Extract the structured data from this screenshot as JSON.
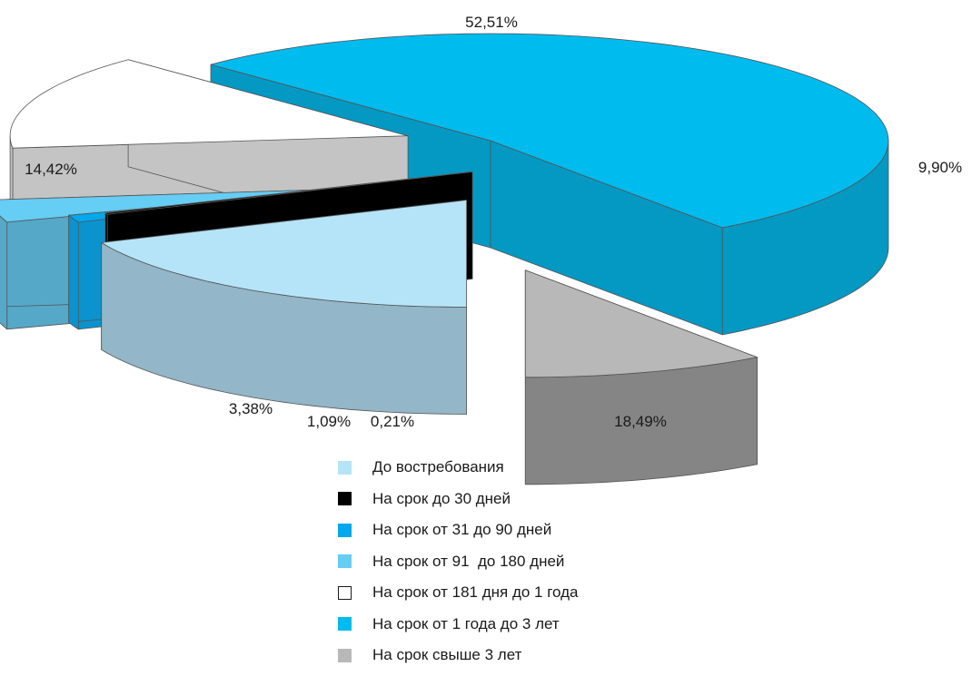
{
  "chart_data": {
    "type": "pie",
    "style": "3d-exploded",
    "categories": [
      "До востребования",
      "На срок до 30 дней",
      "На срок от 31 до 90 дней",
      "На срок от 91  до 180 дней",
      "На срок от 181 дня до 1 года",
      "На срок от 1 года до 3 лет",
      "На срок свыше 3 лет"
    ],
    "values": [
      18.49,
      0.21,
      1.09,
      3.38,
      14.42,
      52.51,
      9.9
    ],
    "value_labels": [
      "18,49%",
      "0,21%",
      "1,09%",
      "3,38%",
      "14,42%",
      "52,51%",
      "9,90%"
    ],
    "colors": [
      "#b5e4f8",
      "#000000",
      "#00a8ec",
      "#66cdf4",
      "#ffffff",
      "#00bbee",
      "#b8b8b8"
    ],
    "legend_position": "bottom"
  }
}
